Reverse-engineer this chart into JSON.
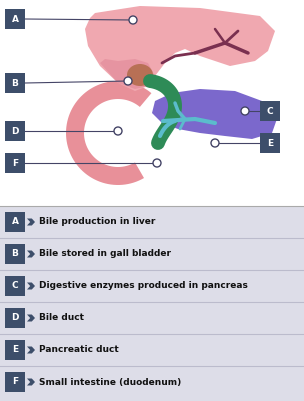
{
  "fig_width": 3.04,
  "fig_height": 4.01,
  "dpi": 100,
  "bg_color": "#ffffff",
  "label_bg": "#3d4e6a",
  "label_text_color": "#ffffff",
  "legend_bg": "#dddde8",
  "legend_sep_color": "#bbbbcc",
  "labels": [
    "A",
    "B",
    "C",
    "D",
    "E",
    "F"
  ],
  "descriptions": [
    "Bile production in liver",
    "Bile stored in gall bladder",
    "Digestive enzymes produced in pancreas",
    "Bile duct",
    "Pancreatic duct",
    "Small intestine (duodenum)"
  ],
  "liver_color": "#f0a8b0",
  "liver_shadow_color": "#e08898",
  "gall_bladder_color": "#b87055",
  "bile_duct_color": "#2e8b57",
  "pancreas_color": "#7b68cc",
  "pancreatic_duct_color": "#5bbccc",
  "duodenum_color": "#e89099",
  "dot_color": "#ffffff",
  "dot_edge_color": "#444466",
  "line_color": "#444466",
  "hepatic_duct_color": "#7a3050"
}
